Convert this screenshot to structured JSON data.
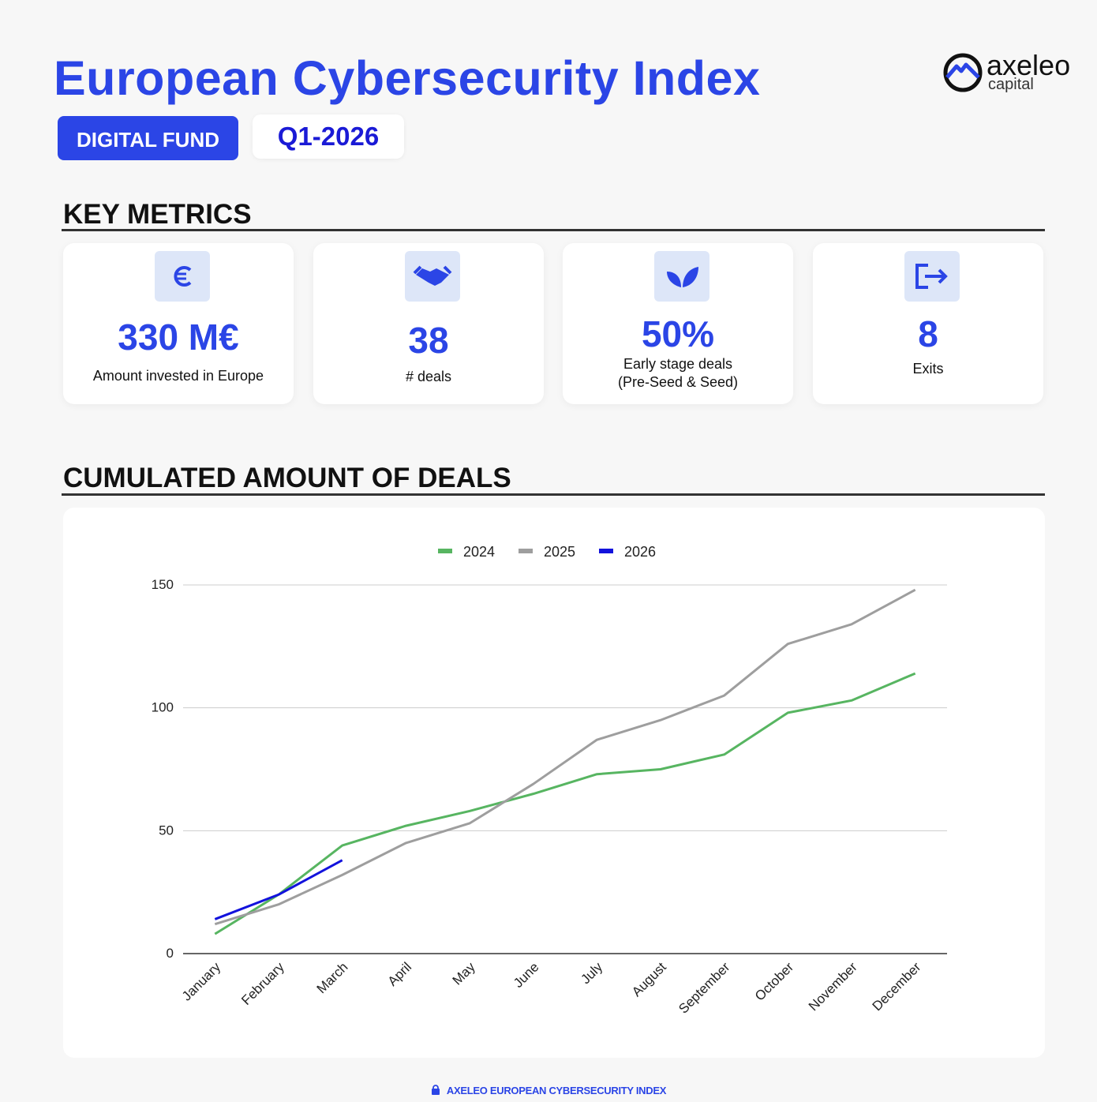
{
  "header": {
    "title": "European Cybersecurity Index",
    "badge": "DIGITAL FUND",
    "period": "Q1-2026",
    "logo": {
      "name": "axeleo",
      "sub": "capital"
    }
  },
  "key_metrics": {
    "heading": "KEY METRICS",
    "cards": [
      {
        "value": "330 M€",
        "label": "Amount invested in Europe"
      },
      {
        "value": "38",
        "label": "# deals"
      },
      {
        "value": "50%",
        "label": "Early stage deals\n(Pre-Seed & Seed)"
      },
      {
        "value": "8",
        "label": "Exits"
      }
    ]
  },
  "chart_heading": "CUMULATED AMOUNT OF DEALS",
  "chart_data": {
    "type": "line",
    "categories": [
      "January",
      "February",
      "March",
      "April",
      "May",
      "June",
      "July",
      "August",
      "September",
      "October",
      "November",
      "December"
    ],
    "series": [
      {
        "name": "2024",
        "color": "#57b561",
        "values": [
          8,
          24,
          44,
          52,
          58,
          65,
          73,
          75,
          81,
          98,
          103,
          114
        ]
      },
      {
        "name": "2025",
        "color": "#9e9e9e",
        "values": [
          12,
          20,
          32,
          45,
          53,
          69,
          87,
          95,
          105,
          126,
          134,
          148
        ]
      },
      {
        "name": "2026",
        "color": "#1212dc",
        "values": [
          14,
          24,
          38,
          null,
          null,
          null,
          null,
          null,
          null,
          null,
          null,
          null
        ]
      }
    ],
    "ylim": [
      0,
      150
    ],
    "yticks": [
      0,
      50,
      100,
      150
    ],
    "grid": true,
    "legend": "top"
  },
  "footer": "AXELEO EUROPEAN CYBERSECURITY INDEX"
}
